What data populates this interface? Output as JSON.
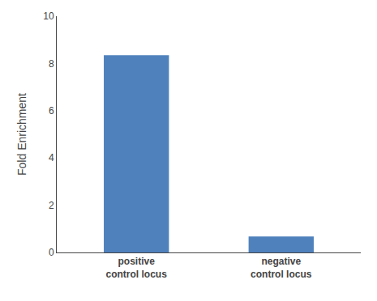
{
  "chart_data": {
    "type": "bar",
    "categories": [
      "positive\ncontrol locus",
      "negative\ncontrol locus"
    ],
    "values": [
      8.35,
      0.68
    ],
    "color": "#4f81bd",
    "ylabel": "Fold Enrichment",
    "ylim": [
      0,
      10
    ],
    "yticks": [
      0,
      2,
      4,
      6,
      8,
      10
    ],
    "grid": false
  }
}
